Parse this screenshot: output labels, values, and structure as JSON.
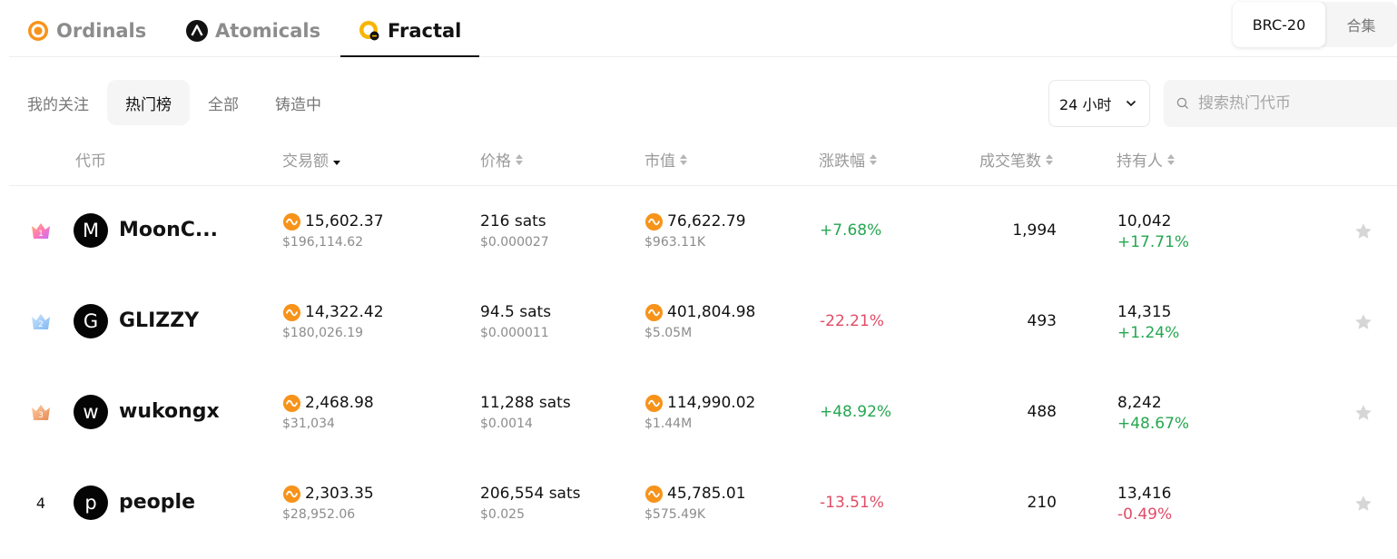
{
  "protocol_tabs": [
    {
      "label": "Ordinals",
      "icon": "ordinals-icon",
      "active": false
    },
    {
      "label": "Atomicals",
      "icon": "atomicals-icon",
      "active": false
    },
    {
      "label": "Fractal",
      "icon": "fractal-icon",
      "active": true
    }
  ],
  "standard_toggle": {
    "active": "BRC-20",
    "inactive": "合集"
  },
  "filter_tabs": [
    {
      "label": "我的关注",
      "active": false
    },
    {
      "label": "热门榜",
      "active": true
    },
    {
      "label": "全部",
      "active": false
    },
    {
      "label": "铸造中",
      "active": false
    }
  ],
  "time_select": {
    "value": "24 小时"
  },
  "search": {
    "placeholder": "搜索热门代币"
  },
  "columns": {
    "token": "代币",
    "volume": "交易额",
    "price": "价格",
    "market_cap": "市值",
    "change": "涨跌幅",
    "trades": "成交笔数",
    "holders": "持有人"
  },
  "rows": [
    {
      "rank": "1",
      "avatar_letter": "M",
      "name": "MoonC...",
      "volume": "15,602.37",
      "volume_usd": "$196,114.62",
      "price": "216 sats",
      "price_usd": "$0.000027",
      "market_cap": "76,622.79",
      "market_cap_usd": "$963.11K",
      "change": "+7.68%",
      "trades": "1,994",
      "holders": "10,042",
      "holders_change": "+17.71%"
    },
    {
      "rank": "2",
      "avatar_letter": "G",
      "name": "GLIZZY",
      "volume": "14,322.42",
      "volume_usd": "$180,026.19",
      "price": "94.5 sats",
      "price_usd": "$0.000011",
      "market_cap": "401,804.98",
      "market_cap_usd": "$5.05M",
      "change": "-22.21%",
      "trades": "493",
      "holders": "14,315",
      "holders_change": "+1.24%"
    },
    {
      "rank": "3",
      "avatar_letter": "w",
      "name": "wukongx",
      "volume": "2,468.98",
      "volume_usd": "$31,034",
      "price": "11,288 sats",
      "price_usd": "$0.0014",
      "market_cap": "114,990.02",
      "market_cap_usd": "$1.44M",
      "change": "+48.92%",
      "trades": "488",
      "holders": "8,242",
      "holders_change": "+48.67%"
    },
    {
      "rank": "4",
      "avatar_letter": "p",
      "name": "people",
      "volume": "2,303.35",
      "volume_usd": "$28,952.06",
      "price": "206,554 sats",
      "price_usd": "$0.025",
      "market_cap": "45,785.01",
      "market_cap_usd": "$575.49K",
      "change": "-13.51%",
      "trades": "210",
      "holders": "13,416",
      "holders_change": "-0.49%"
    }
  ],
  "colors": {
    "positive": "#25a750",
    "negative": "#e14b66",
    "brand_orange": "#f7931a"
  }
}
